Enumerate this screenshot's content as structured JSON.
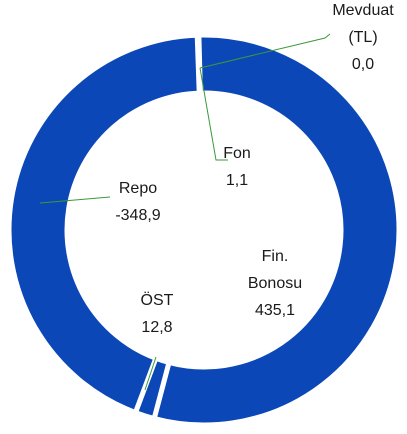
{
  "chart_data": {
    "type": "donut",
    "categories": [
      "Mevduat (TL)",
      "Fon",
      "Fin. Bonosu",
      "ÖST",
      "Repo"
    ],
    "values": [
      0.0,
      1.1,
      435.1,
      12.8,
      -348.9
    ],
    "value_labels": [
      "0,0",
      "1,1",
      "435,1",
      "12,8",
      "-348,9"
    ],
    "color": "#0b47b7"
  }
}
